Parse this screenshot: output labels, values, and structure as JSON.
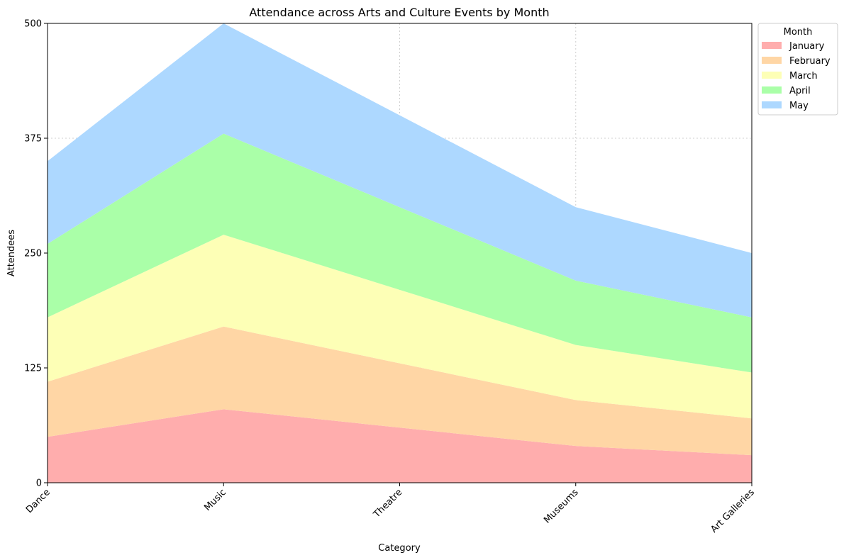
{
  "chart_data": {
    "type": "area",
    "stacked": true,
    "title": "Attendance across Arts and Culture Events by Month",
    "xlabel": "Category",
    "ylabel": "Attendees",
    "categories": [
      "Dance",
      "Music",
      "Theatre",
      "Museums",
      "Art Galleries"
    ],
    "ylim": [
      0,
      500
    ],
    "yticks": [
      "0",
      "125",
      "250",
      "375",
      "500"
    ],
    "grid": true,
    "legend": {
      "title": "Month",
      "placement": "outside top-right"
    },
    "series": [
      {
        "name": "January",
        "color": "#ffadad",
        "values": [
          50,
          80,
          60,
          40,
          30
        ]
      },
      {
        "name": "February",
        "color": "#ffd6a5",
        "values": [
          60,
          90,
          70,
          50,
          40
        ]
      },
      {
        "name": "March",
        "color": "#fdffb6",
        "values": [
          70,
          100,
          80,
          60,
          50
        ]
      },
      {
        "name": "April",
        "color": "#aaffa8",
        "values": [
          80,
          110,
          90,
          70,
          60
        ]
      },
      {
        "name": "May",
        "color": "#add8ff",
        "values": [
          90,
          120,
          100,
          80,
          70
        ]
      }
    ]
  }
}
